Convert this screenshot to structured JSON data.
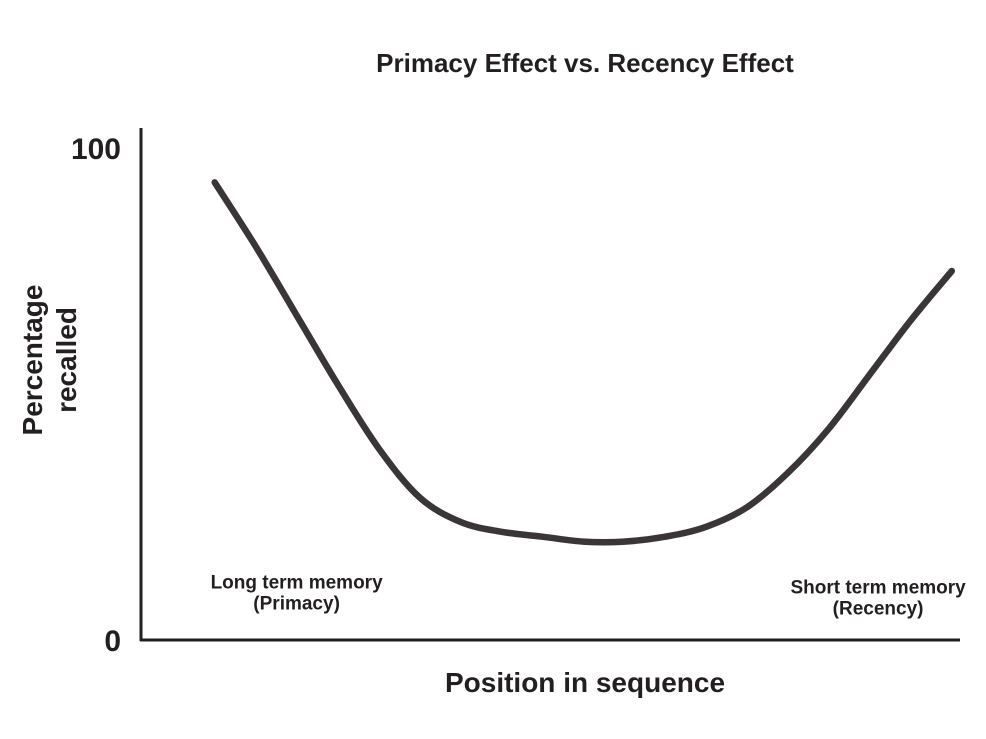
{
  "chart_data": {
    "type": "line",
    "title": "Primacy Effect vs. Recency Effect",
    "xlabel": "Position in sequence",
    "ylabel": [
      "Percentage",
      "recalled"
    ],
    "ylim": [
      0,
      100
    ],
    "xlim": [
      0,
      100
    ],
    "y_ticks": [
      {
        "value": 0,
        "label": "0"
      },
      {
        "value": 100,
        "label": "100"
      }
    ],
    "grid": false,
    "line_color": "#3a3637",
    "axis_color": "#231f20",
    "series": [
      {
        "x": [
          9,
          14,
          19,
          24,
          29,
          34,
          39,
          44,
          49,
          54,
          59,
          64,
          69,
          74,
          79,
          84,
          89,
          94,
          99
        ],
        "values": [
          93,
          80,
          66,
          52,
          39,
          29,
          24,
          22,
          21,
          20,
          20,
          21,
          23,
          27,
          34,
          43,
          54,
          65,
          75
        ]
      }
    ],
    "annotations": [
      {
        "lines": [
          "Long term memory",
          "(Primacy)"
        ],
        "x": 19,
        "y": 8
      },
      {
        "lines": [
          "Short term memory",
          "(Recency)"
        ],
        "x": 90,
        "y": 7
      }
    ]
  }
}
